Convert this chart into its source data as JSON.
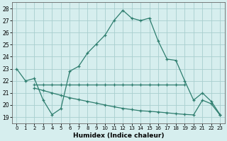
{
  "xlabel": "Humidex (Indice chaleur)",
  "bg_color": "#d6eeee",
  "grid_color": "#a8cece",
  "line_color": "#2d7d6e",
  "xlim": [
    -0.5,
    23.5
  ],
  "ylim": [
    18.5,
    28.5
  ],
  "xticks": [
    0,
    1,
    2,
    3,
    4,
    5,
    6,
    7,
    8,
    9,
    10,
    11,
    12,
    13,
    14,
    15,
    16,
    17,
    18,
    19,
    20,
    21,
    22,
    23
  ],
  "yticks": [
    19,
    20,
    21,
    22,
    23,
    24,
    25,
    26,
    27,
    28
  ],
  "line1_x": [
    0,
    1,
    2,
    3,
    4,
    5,
    6,
    7,
    8,
    9,
    10,
    11,
    12,
    13,
    14,
    15,
    16,
    17,
    18,
    19,
    20,
    21,
    22,
    23
  ],
  "line1_y": [
    23.0,
    22.0,
    22.2,
    20.4,
    19.2,
    19.7,
    22.8,
    23.2,
    24.3,
    25.05,
    25.8,
    27.0,
    27.85,
    27.2,
    27.0,
    27.2,
    25.3,
    23.8,
    23.7,
    22.0,
    20.4,
    21.0,
    20.3,
    19.2
  ],
  "line2_x": [
    2,
    3,
    4,
    5,
    6,
    7,
    8,
    9,
    10,
    11,
    12,
    13,
    14,
    15,
    16,
    17,
    18,
    19
  ],
  "line2_y": [
    21.7,
    21.7,
    21.7,
    21.7,
    21.7,
    21.7,
    21.7,
    21.7,
    21.7,
    21.7,
    21.7,
    21.7,
    21.7,
    21.7,
    21.7,
    21.7,
    21.7,
    21.7
  ],
  "line3_x": [
    2,
    3,
    4,
    5,
    6,
    7,
    8,
    9,
    10,
    11,
    12,
    13,
    14,
    15,
    16,
    17,
    18,
    19,
    20,
    21,
    22,
    23
  ],
  "line3_y": [
    21.4,
    21.2,
    21.0,
    20.8,
    20.6,
    20.45,
    20.3,
    20.15,
    20.0,
    19.85,
    19.72,
    19.62,
    19.52,
    19.48,
    19.42,
    19.35,
    19.28,
    19.22,
    19.18,
    20.4,
    20.1,
    19.15
  ]
}
